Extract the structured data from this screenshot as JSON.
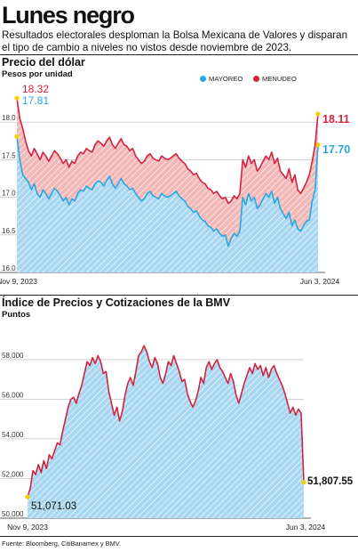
{
  "header": {
    "title": "Lunes negro",
    "subtitle": "Resultados electorales desploman la Bolsa Mexicana de Valores y disparan el tipo de cambio a niveles no vistos desde noviembre de 2023."
  },
  "source": "Fuente: Bloomberg, CitiBanamex y BMV.",
  "colors": {
    "blue": "#2aa7e0",
    "red": "#d1233f",
    "yellow": "#f6d000",
    "blue_fill": "#a9d7f1",
    "red_fill": "#f2b7b7"
  },
  "chart_data": [
    {
      "type": "area",
      "title": "Precio del dólar",
      "ylabel": "Pesos por unidad",
      "x_start_label": "Nov 9, 2023",
      "x_end_label": "Jun 3, 2024",
      "ylim": [
        16.0,
        18.5
      ],
      "yticks": [
        "18.0",
        "17.5",
        "17.0",
        "16.5",
        "16.0"
      ],
      "legend": [
        "MAYOREO",
        "MENUDEO"
      ],
      "legend_position": "top-right",
      "series": [
        {
          "name": "MENUDEO",
          "color": "#d1233f",
          "start_label": "18.32",
          "end_label": "18.11",
          "values": [
            18.32,
            18.05,
            17.92,
            17.75,
            17.62,
            17.55,
            17.65,
            17.58,
            17.5,
            17.6,
            17.55,
            17.48,
            17.55,
            17.62,
            17.58,
            17.52,
            17.45,
            17.5,
            17.4,
            17.48,
            17.45,
            17.55,
            17.6,
            17.58,
            17.65,
            17.62,
            17.6,
            17.7,
            17.75,
            17.72,
            17.68,
            17.75,
            17.8,
            17.7,
            17.65,
            17.72,
            17.78,
            17.7,
            17.68,
            17.62,
            17.65,
            17.55,
            17.5,
            17.45,
            17.48,
            17.55,
            17.58,
            17.52,
            17.5,
            17.48,
            17.55,
            17.52,
            17.5,
            17.52,
            17.55,
            17.58,
            17.52,
            17.48,
            17.45,
            17.38,
            17.35,
            17.3,
            17.32,
            17.25,
            17.2,
            17.18,
            17.12,
            17.1,
            17.05,
            17.08,
            17.02,
            16.98,
            17.0,
            16.92,
            16.95,
            17.02,
            16.98,
            17.05,
            17.5,
            17.4,
            17.55,
            17.45,
            17.5,
            17.35,
            17.4,
            17.48,
            17.55,
            17.5,
            17.6,
            17.45,
            17.52,
            17.35,
            17.3,
            17.25,
            17.38,
            17.2,
            17.3,
            17.1,
            17.05,
            17.12,
            17.2,
            17.3,
            17.48,
            17.7,
            18.11
          ]
        },
        {
          "name": "MAYOREO",
          "color": "#2aa7e0",
          "start_label": "17.81",
          "end_label": "17.70",
          "values": [
            17.81,
            17.5,
            17.3,
            17.25,
            17.2,
            17.1,
            17.18,
            17.05,
            17.0,
            17.1,
            17.05,
            16.98,
            17.05,
            17.12,
            17.08,
            17.02,
            16.95,
            17.0,
            16.9,
            16.98,
            16.95,
            17.05,
            17.1,
            17.08,
            17.15,
            17.12,
            17.1,
            17.18,
            17.22,
            17.2,
            17.15,
            17.22,
            17.28,
            17.18,
            17.12,
            17.18,
            17.25,
            17.18,
            17.15,
            17.1,
            17.12,
            17.05,
            17.0,
            16.95,
            16.98,
            17.05,
            17.08,
            17.02,
            17.0,
            16.98,
            17.05,
            17.02,
            17.0,
            17.02,
            17.05,
            17.08,
            17.02,
            16.98,
            16.95,
            16.88,
            16.85,
            16.8,
            16.82,
            16.75,
            16.7,
            16.68,
            16.62,
            16.6,
            16.55,
            16.58,
            16.52,
            16.48,
            16.5,
            16.35,
            16.45,
            16.52,
            16.48,
            16.55,
            17.0,
            16.9,
            17.05,
            16.95,
            17.0,
            16.85,
            16.9,
            16.98,
            17.05,
            17.0,
            17.08,
            16.92,
            17.0,
            16.85,
            16.78,
            16.72,
            16.8,
            16.62,
            16.7,
            16.58,
            16.55,
            16.62,
            16.68,
            16.7,
            16.95,
            17.1,
            17.7
          ]
        }
      ]
    },
    {
      "type": "area",
      "title": "Índice de Precios y Cotizaciones de la BMV",
      "ylabel": "Puntos",
      "x_start_label": "Nov 9, 2023",
      "x_end_label": "Jun 3, 2024",
      "ylim": [
        50000,
        59300
      ],
      "yticks": [
        "58,000",
        "56,000",
        "54,000",
        "52,000",
        "50,000"
      ],
      "start_label": "51,071.03",
      "end_label": "51,807.55",
      "series": [
        {
          "name": "IPC",
          "color": "#d1233f",
          "values": [
            51071,
            51500,
            52400,
            52200,
            52700,
            52300,
            52900,
            52500,
            53200,
            53000,
            53400,
            53800,
            53700,
            54400,
            55000,
            55600,
            56000,
            56100,
            55800,
            56300,
            56700,
            57300,
            57900,
            57700,
            58100,
            57800,
            58200,
            57900,
            57300,
            57400,
            56400,
            55800,
            55200,
            55600,
            54900,
            55400,
            56200,
            56800,
            57100,
            56700,
            57400,
            58200,
            58400,
            58700,
            58400,
            57900,
            57600,
            58100,
            57800,
            57100,
            56800,
            57300,
            57900,
            57700,
            58200,
            57800,
            57400,
            56900,
            57000,
            56300,
            55900,
            55600,
            55900,
            56400,
            57100,
            56800,
            57600,
            57900,
            57500,
            57800,
            58000,
            57600,
            57400,
            57100,
            56800,
            57300,
            56900,
            56200,
            55800,
            56300,
            56800,
            57200,
            57600,
            57300,
            57800,
            57500,
            57700,
            57200,
            57600,
            57100,
            57500,
            57700,
            57300,
            57000,
            56700,
            56300,
            55800,
            55300,
            55600,
            55200,
            55500,
            55300,
            51808
          ]
        }
      ]
    }
  ]
}
